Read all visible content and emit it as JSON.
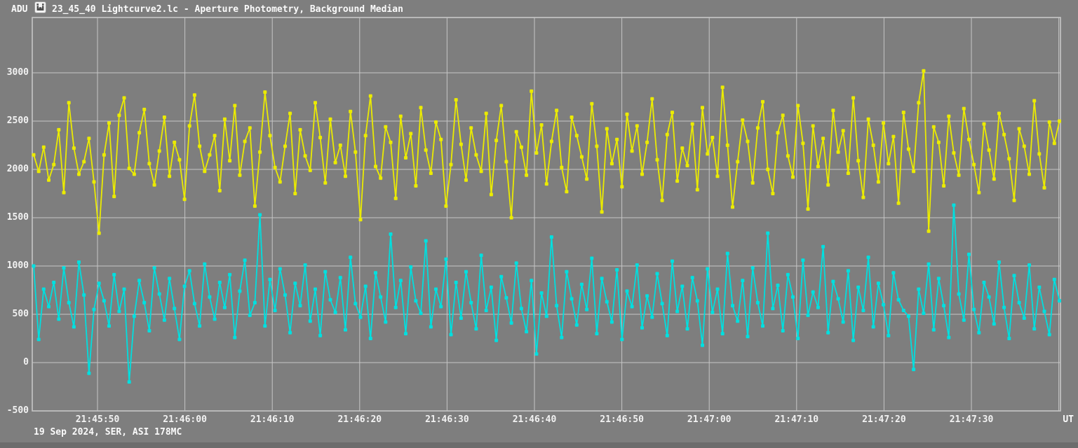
{
  "header": {
    "y_axis_unit": "ADU",
    "title": "23_45_40 Lightcurve2.lc - Aperture Photometry, Background Median",
    "app_icon": "app-logo-icon"
  },
  "footer": {
    "info": "19 Sep 2024, SER, ASI 178MC",
    "x_axis_unit": "UT"
  },
  "colors": {
    "background": "#7e7e7e",
    "grid": "#c6c6c6",
    "text": "#fbfbfb",
    "series_yellow": "#ebeb00",
    "series_cyan": "#00dfdf",
    "bottom_strip": "#6c6c6c"
  },
  "chart_data": {
    "type": "line",
    "title": "23_45_40 Lightcurve2.lc - Aperture Photometry, Background Median",
    "xlabel": "UT",
    "ylabel": "ADU",
    "grid": true,
    "legend": "none",
    "ylim": [
      -500,
      3570
    ],
    "y_ticks": [
      3000,
      2500,
      2000,
      1500,
      1000,
      500,
      0,
      -500
    ],
    "x_tick_labels": [
      "21:45:50",
      "21:46:00",
      "21:46:10",
      "21:46:20",
      "21:46:30",
      "21:46:40",
      "21:46:50",
      "21:47:00",
      "21:47:10",
      "21:47:20",
      "21:47:30"
    ],
    "x_tick_interval_seconds": 10,
    "marker": "square",
    "series": [
      {
        "name": "yellow-lightcurve",
        "color": "#ebeb00",
        "values": [
          2150,
          1980,
          2230,
          1890,
          2050,
          2410,
          1760,
          2690,
          2220,
          1950,
          2080,
          2320,
          1870,
          1340,
          2150,
          2480,
          1720,
          2560,
          2740,
          2010,
          1950,
          2380,
          2620,
          2060,
          1840,
          2190,
          2540,
          1930,
          2280,
          2100,
          1690,
          2450,
          2770,
          2240,
          1980,
          2150,
          2350,
          1780,
          2520,
          2090,
          2660,
          1940,
          2290,
          2430,
          1620,
          2180,
          2800,
          2350,
          2020,
          1870,
          2240,
          2580,
          1750,
          2410,
          2140,
          1990,
          2690,
          2330,
          1860,
          2520,
          2070,
          2250,
          1930,
          2600,
          2180,
          1480,
          2350,
          2760,
          2030,
          1910,
          2440,
          2280,
          1700,
          2550,
          2120,
          2370,
          1830,
          2640,
          2200,
          1960,
          2490,
          2310,
          1620,
          2050,
          2720,
          2260,
          1890,
          2430,
          2150,
          1980,
          2580,
          1740,
          2300,
          2660,
          2080,
          1500,
          2390,
          2230,
          1940,
          2810,
          2170,
          2460,
          1850,
          2290,
          2610,
          2020,
          1770,
          2540,
          2350,
          2130,
          1900,
          2680,
          2240,
          1560,
          2420,
          2060,
          2310,
          1820,
          2570,
          2190,
          2450,
          1950,
          2280,
          2730,
          2100,
          1680,
          2360,
          2590,
          1880,
          2220,
          2040,
          2470,
          1790,
          2640,
          2160,
          2330,
          1930,
          2850,
          2250,
          1610,
          2080,
          2510,
          2290,
          1860,
          2430,
          2700,
          2000,
          1750,
          2380,
          2560,
          2140,
          1920,
          2660,
          2270,
          1590,
          2450,
          2030,
          2320,
          1840,
          2610,
          2180,
          2400,
          1960,
          2740,
          2090,
          1710,
          2520,
          2250,
          1870,
          2480,
          2060,
          2340,
          1650,
          2590,
          2210,
          1980,
          2690,
          3020,
          1360,
          2440,
          2280,
          1830,
          2550,
          2170,
          1940,
          2630,
          2310,
          2050,
          1760,
          2470,
          2200,
          1900,
          2580,
          2360,
          2110,
          1680,
          2420,
          2240,
          1950,
          2710,
          2160,
          1810,
          2490,
          2270,
          2500
        ]
      },
      {
        "name": "cyan-lightcurve",
        "color": "#00dfdf",
        "values": [
          1000,
          240,
          760,
          580,
          830,
          450,
          980,
          620,
          370,
          1040,
          700,
          -110,
          550,
          820,
          640,
          380,
          910,
          530,
          760,
          -200,
          480,
          850,
          620,
          330,
          980,
          710,
          440,
          870,
          560,
          240,
          790,
          950,
          610,
          380,
          1020,
          680,
          450,
          830,
          570,
          910,
          260,
          740,
          1060,
          490,
          620,
          1530,
          380,
          860,
          540,
          970,
          700,
          310,
          820,
          590,
          1010,
          430,
          760,
          280,
          940,
          650,
          520,
          880,
          340,
          1090,
          610,
          470,
          790,
          250,
          930,
          680,
          420,
          1330,
          570,
          850,
          300,
          990,
          640,
          510,
          1260,
          370,
          760,
          580,
          1070,
          290,
          830,
          460,
          940,
          620,
          350,
          1110,
          540,
          780,
          230,
          890,
          670,
          410,
          1030,
          560,
          320,
          850,
          90,
          720,
          480,
          1300,
          590,
          260,
          940,
          660,
          390,
          810,
          550,
          1080,
          300,
          870,
          630,
          420,
          960,
          240,
          740,
          580,
          1010,
          360,
          690,
          470,
          920,
          610,
          280,
          1050,
          530,
          790,
          350,
          880,
          640,
          180,
          970,
          520,
          760,
          300,
          1130,
          590,
          430,
          850,
          270,
          980,
          620,
          380,
          1340,
          560,
          800,
          330,
          910,
          680,
          250,
          1060,
          490,
          730,
          570,
          1200,
          310,
          840,
          660,
          420,
          950,
          230,
          780,
          540,
          1090,
          370,
          820,
          600,
          280,
          930,
          650,
          540,
          480,
          -70,
          760,
          510,
          1020,
          340,
          870,
          590,
          260,
          1630,
          710,
          440,
          1120,
          550,
          310,
          830,
          680,
          400,
          1040,
          570,
          250,
          900,
          620,
          460,
          1010,
          350,
          780,
          530,
          290,
          860,
          640
        ]
      }
    ]
  }
}
